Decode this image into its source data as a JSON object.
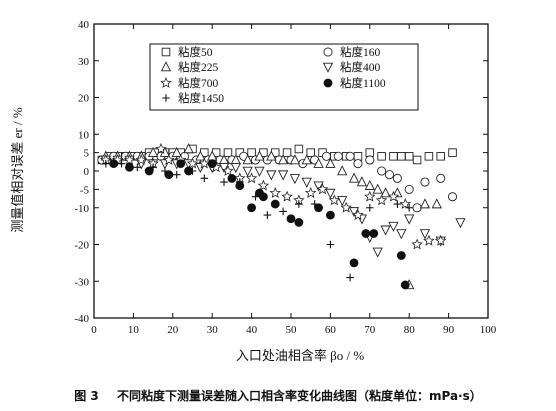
{
  "figure": {
    "number": "图 3",
    "caption": "不同粘度下测量误差随入口相含率变化曲线图（粘度单位：mPa·s）"
  },
  "chart_data": {
    "type": "scatter",
    "xlabel": "入口处油相含率 βo / %",
    "ylabel": "测量值相对误差 er / %",
    "xlim": [
      0,
      100
    ],
    "ylim": [
      -40,
      40
    ],
    "xticks": [
      0,
      10,
      20,
      30,
      40,
      50,
      60,
      70,
      80,
      90,
      100
    ],
    "yticks": [
      -40,
      -30,
      -20,
      -10,
      -5,
      0,
      5,
      10,
      20,
      30,
      40
    ],
    "grid": false,
    "legend_placement": "top-center (inside box)",
    "series": [
      {
        "name": "粘度50",
        "marker": "square",
        "points": [
          [
            2,
            3
          ],
          [
            4,
            4
          ],
          [
            6,
            4
          ],
          [
            8,
            4
          ],
          [
            10,
            4
          ],
          [
            12,
            4
          ],
          [
            14,
            5
          ],
          [
            16,
            5
          ],
          [
            18,
            5
          ],
          [
            20,
            5
          ],
          [
            22,
            5
          ],
          [
            25,
            6
          ],
          [
            28,
            5
          ],
          [
            31,
            5
          ],
          [
            34,
            5
          ],
          [
            37,
            5
          ],
          [
            40,
            5
          ],
          [
            43,
            5
          ],
          [
            46,
            5
          ],
          [
            49,
            5
          ],
          [
            52,
            6
          ],
          [
            55,
            5
          ],
          [
            58,
            5
          ],
          [
            61,
            4
          ],
          [
            64,
            4
          ],
          [
            67,
            4
          ],
          [
            70,
            5
          ],
          [
            73,
            4
          ],
          [
            76,
            4
          ],
          [
            78,
            4
          ],
          [
            80,
            4
          ],
          [
            82,
            3
          ],
          [
            85,
            4
          ],
          [
            88,
            4
          ],
          [
            91,
            5
          ]
        ]
      },
      {
        "name": "粘度160",
        "marker": "circle",
        "points": [
          [
            2,
            3
          ],
          [
            5,
            4
          ],
          [
            8,
            4
          ],
          [
            11,
            4
          ],
          [
            14,
            4
          ],
          [
            17,
            4
          ],
          [
            20,
            4
          ],
          [
            23,
            4
          ],
          [
            26,
            3
          ],
          [
            29,
            3
          ],
          [
            32,
            3
          ],
          [
            35,
            3
          ],
          [
            38,
            4
          ],
          [
            41,
            3
          ],
          [
            44,
            3
          ],
          [
            47,
            3
          ],
          [
            50,
            3
          ],
          [
            53,
            2
          ],
          [
            56,
            3
          ],
          [
            59,
            4
          ],
          [
            62,
            4
          ],
          [
            65,
            4
          ],
          [
            67,
            2
          ],
          [
            70,
            3
          ],
          [
            73,
            0
          ],
          [
            75,
            -1
          ],
          [
            77,
            -2
          ],
          [
            80,
            -5
          ],
          [
            82,
            -10
          ],
          [
            84,
            -3
          ],
          [
            88,
            -2
          ],
          [
            91,
            -7
          ]
        ]
      },
      {
        "name": "粘度225",
        "marker": "triangle-up",
        "points": [
          [
            3,
            4
          ],
          [
            6,
            4
          ],
          [
            9,
            4
          ],
          [
            12,
            4
          ],
          [
            15,
            5
          ],
          [
            18,
            5
          ],
          [
            21,
            5
          ],
          [
            24,
            6
          ],
          [
            27,
            4
          ],
          [
            30,
            4
          ],
          [
            33,
            3
          ],
          [
            36,
            3
          ],
          [
            39,
            3
          ],
          [
            42,
            4
          ],
          [
            45,
            4
          ],
          [
            48,
            3
          ],
          [
            51,
            3
          ],
          [
            54,
            3
          ],
          [
            57,
            2
          ],
          [
            60,
            2
          ],
          [
            63,
            0
          ],
          [
            66,
            -2
          ],
          [
            68,
            -3
          ],
          [
            70,
            -4
          ],
          [
            72,
            -5
          ],
          [
            74,
            -6
          ],
          [
            77,
            -6
          ],
          [
            80,
            -31
          ],
          [
            84,
            -9
          ],
          [
            87,
            -9
          ]
        ]
      },
      {
        "name": "粘度400",
        "marker": "triangle-down",
        "points": [
          [
            3,
            3
          ],
          [
            6,
            3
          ],
          [
            9,
            3
          ],
          [
            12,
            2
          ],
          [
            15,
            2
          ],
          [
            18,
            2
          ],
          [
            21,
            2
          ],
          [
            24,
            2
          ],
          [
            27,
            1
          ],
          [
            30,
            1
          ],
          [
            33,
            1
          ],
          [
            36,
            1
          ],
          [
            39,
            0
          ],
          [
            42,
            0
          ],
          [
            45,
            -1
          ],
          [
            48,
            -1
          ],
          [
            51,
            -2
          ],
          [
            54,
            -3
          ],
          [
            57,
            -4
          ],
          [
            60,
            -6
          ],
          [
            63,
            -8
          ],
          [
            66,
            -11
          ],
          [
            68,
            -13
          ],
          [
            70,
            -18
          ],
          [
            72,
            -22
          ],
          [
            74,
            -16
          ],
          [
            76,
            -15
          ],
          [
            78,
            -17
          ],
          [
            80,
            -13
          ],
          [
            84,
            -17
          ],
          [
            88,
            -19
          ],
          [
            93,
            -14
          ]
        ]
      },
      {
        "name": "粘度700",
        "marker": "star",
        "points": [
          [
            3,
            3
          ],
          [
            6,
            3
          ],
          [
            9,
            3
          ],
          [
            12,
            3
          ],
          [
            15,
            2
          ],
          [
            17,
            6
          ],
          [
            19,
            3
          ],
          [
            22,
            3
          ],
          [
            25,
            2
          ],
          [
            28,
            2
          ],
          [
            31,
            1
          ],
          [
            34,
            0
          ],
          [
            37,
            -2
          ],
          [
            40,
            -2
          ],
          [
            43,
            -4
          ],
          [
            46,
            -6
          ],
          [
            49,
            -7
          ],
          [
            52,
            -8
          ],
          [
            55,
            -6
          ],
          [
            58,
            -5
          ],
          [
            61,
            -8
          ],
          [
            64,
            -10
          ],
          [
            67,
            -12
          ],
          [
            70,
            -7
          ],
          [
            73,
            -8
          ],
          [
            76,
            -7
          ],
          [
            79,
            -9
          ],
          [
            82,
            -20
          ],
          [
            85,
            -19
          ],
          [
            88,
            -19
          ]
        ]
      },
      {
        "name": "粘度1100",
        "marker": "filled-circle",
        "points": [
          [
            5,
            2
          ],
          [
            9,
            1
          ],
          [
            14,
            0
          ],
          [
            19,
            -1
          ],
          [
            22,
            2
          ],
          [
            24,
            0
          ],
          [
            30,
            2
          ],
          [
            35,
            -2
          ],
          [
            37,
            -4
          ],
          [
            40,
            -10
          ],
          [
            42,
            -6
          ],
          [
            43,
            -7
          ],
          [
            46,
            -9
          ],
          [
            50,
            -13
          ],
          [
            52,
            -14
          ],
          [
            57,
            -10
          ],
          [
            60,
            -12
          ],
          [
            66,
            -25
          ],
          [
            69,
            -17
          ],
          [
            71,
            -17
          ],
          [
            78,
            -23
          ],
          [
            79,
            -31
          ]
        ]
      },
      {
        "name": "粘度1450",
        "marker": "plus",
        "points": [
          [
            3,
            2
          ],
          [
            7,
            2
          ],
          [
            11,
            1
          ],
          [
            15,
            1
          ],
          [
            18,
            0
          ],
          [
            21,
            -1
          ],
          [
            25,
            0
          ],
          [
            28,
            -2
          ],
          [
            33,
            -3
          ],
          [
            37,
            -3
          ],
          [
            41,
            -7
          ],
          [
            44,
            -12
          ],
          [
            48,
            -11
          ],
          [
            52,
            -9
          ],
          [
            56,
            -9
          ],
          [
            60,
            -20
          ],
          [
            65,
            -29
          ],
          [
            70,
            -10
          ],
          [
            77,
            -9
          ],
          [
            80,
            -10
          ]
        ]
      }
    ]
  }
}
